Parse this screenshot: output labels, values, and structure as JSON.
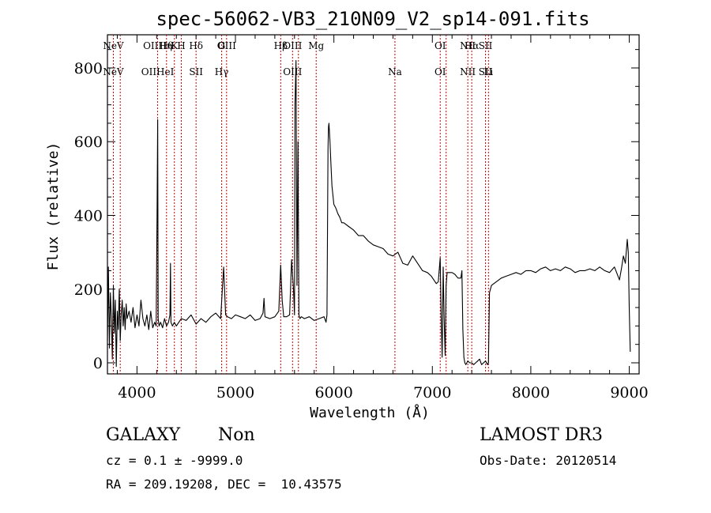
{
  "chart_data": {
    "type": "line",
    "title": "spec-56062-VB3_210N09_V2_sp14-091.fits",
    "xlabel": "Wavelength (Å)",
    "ylabel": "Flux (relative)",
    "xlim": [
      3700,
      9100
    ],
    "ylim": [
      -30,
      890
    ],
    "x_ticks": [
      4000,
      5000,
      6000,
      7000,
      8000,
      9000
    ],
    "y_ticks": [
      0,
      200,
      400,
      600,
      800
    ],
    "grid": false,
    "series": [
      {
        "color": "#000000",
        "x": [
          3700,
          3710,
          3720,
          3730,
          3740,
          3750,
          3760,
          3770,
          3780,
          3790,
          3800,
          3810,
          3820,
          3830,
          3840,
          3850,
          3860,
          3870,
          3880,
          3890,
          3900,
          3920,
          3940,
          3960,
          3980,
          4000,
          4020,
          4040,
          4060,
          4080,
          4100,
          4120,
          4140,
          4160,
          4180,
          4195,
          4205,
          4210,
          4215,
          4225,
          4240,
          4260,
          4280,
          4300,
          4320,
          4335,
          4340,
          4345,
          4360,
          4380,
          4400,
          4450,
          4500,
          4550,
          4600,
          4650,
          4700,
          4750,
          4800,
          4850,
          4880,
          4900,
          4920,
          4960,
          5000,
          5050,
          5100,
          5150,
          5200,
          5250,
          5280,
          5290,
          5300,
          5350,
          5400,
          5440,
          5460,
          5475,
          5490,
          5520,
          5550,
          5570,
          5590,
          5600,
          5605,
          5615,
          5625,
          5635,
          5645,
          5655,
          5670,
          5700,
          5750,
          5800,
          5850,
          5900,
          5920,
          5930,
          5940,
          5945,
          5950,
          5960,
          5970,
          5980,
          5990,
          6000,
          6020,
          6040,
          6060,
          6080,
          6100,
          6150,
          6200,
          6250,
          6300,
          6350,
          6400,
          6450,
          6500,
          6550,
          6600,
          6650,
          6700,
          6750,
          6800,
          6850,
          6900,
          6950,
          6990,
          7040,
          7060,
          7080,
          7090,
          7100,
          7110,
          7120,
          7130,
          7140,
          7150,
          7170,
          7200,
          7230,
          7260,
          7290,
          7300,
          7310,
          7320,
          7330,
          7340,
          7360,
          7380,
          7400,
          7420,
          7440,
          7460,
          7480,
          7500,
          7520,
          7540,
          7560,
          7570,
          7580,
          7590,
          7600,
          7650,
          7700,
          7750,
          7800,
          7850,
          7900,
          7950,
          8000,
          8050,
          8100,
          8150,
          8200,
          8250,
          8300,
          8350,
          8400,
          8450,
          8500,
          8550,
          8600,
          8650,
          8700,
          8750,
          8800,
          8850,
          8900,
          8920,
          8940,
          8960,
          8980,
          8990,
          9000,
          9010
        ],
        "y": [
          60,
          260,
          40,
          190,
          120,
          10,
          210,
          80,
          170,
          -10,
          140,
          90,
          200,
          60,
          130,
          170,
          100,
          150,
          90,
          160,
          120,
          140,
          110,
          150,
          95,
          130,
          100,
          170,
          120,
          100,
          130,
          90,
          140,
          95,
          110,
          100,
          430,
          660,
          120,
          100,
          110,
          95,
          120,
          100,
          110,
          130,
          270,
          110,
          100,
          110,
          100,
          120,
          115,
          130,
          105,
          120,
          110,
          125,
          135,
          120,
          260,
          130,
          125,
          120,
          130,
          125,
          120,
          130,
          115,
          120,
          135,
          175,
          125,
          120,
          125,
          140,
          265,
          170,
          125,
          125,
          130,
          280,
          200,
          130,
          700,
          820,
          210,
          600,
          130,
          120,
          125,
          120,
          125,
          115,
          120,
          125,
          110,
          130,
          580,
          640,
          650,
          600,
          540,
          480,
          455,
          430,
          420,
          405,
          395,
          380,
          380,
          370,
          360,
          345,
          345,
          330,
          320,
          315,
          310,
          295,
          290,
          300,
          270,
          265,
          290,
          270,
          250,
          245,
          235,
          215,
          220,
          285,
          120,
          15,
          260,
          120,
          20,
          210,
          245,
          245,
          245,
          240,
          230,
          230,
          250,
          90,
          15,
          0,
          -5,
          5,
          0,
          0,
          -5,
          0,
          5,
          10,
          -5,
          0,
          5,
          -5,
          0,
          190,
          200,
          210,
          220,
          230,
          235,
          240,
          245,
          240,
          250,
          250,
          245,
          255,
          260,
          250,
          255,
          250,
          260,
          255,
          245,
          250,
          250,
          255,
          250,
          260,
          250,
          245,
          260,
          225,
          255,
          290,
          270,
          335,
          300,
          150,
          30
        ]
      }
    ],
    "line_markers": [
      {
        "x": 3760,
        "top": "NeV",
        "bottom": "NeV"
      },
      {
        "x": 3830,
        "top": "",
        "bottom": ""
      },
      {
        "x": 4210,
        "top": "OIIHη",
        "bottom": "OIIHeI"
      },
      {
        "x": 4300,
        "top": "Hθ",
        "bottom": ""
      },
      {
        "x": 4380,
        "top": "K",
        "bottom": ""
      },
      {
        "x": 4450,
        "top": "H",
        "bottom": ""
      },
      {
        "x": 4600,
        "top": "Hδ",
        "bottom": "SII"
      },
      {
        "x": 4860,
        "top": "G",
        "bottom": "Hγ"
      },
      {
        "x": 4910,
        "top": "OIII",
        "bottom": ""
      },
      {
        "x": 5460,
        "top": "Hβ",
        "bottom": ""
      },
      {
        "x": 5580,
        "top": "OIII",
        "bottom": "OIII"
      },
      {
        "x": 5640,
        "top": "",
        "bottom": ""
      },
      {
        "x": 5820,
        "top": "Mg",
        "bottom": ""
      },
      {
        "x": 6620,
        "top": "",
        "bottom": "Na"
      },
      {
        "x": 7080,
        "top": "OI",
        "bottom": "OI"
      },
      {
        "x": 7140,
        "top": "",
        "bottom": ""
      },
      {
        "x": 7360,
        "top": "NII",
        "bottom": "NII"
      },
      {
        "x": 7400,
        "top": "Hα",
        "bottom": ""
      },
      {
        "x": 7540,
        "top": "SII",
        "bottom": "SII"
      },
      {
        "x": 7570,
        "top": "",
        "bottom": "Li"
      }
    ],
    "marker_color": "#cc0000"
  },
  "info": {
    "object_class": "GALAXY",
    "subclass": "Non",
    "survey": "LAMOST DR3",
    "redshift": "cz = 0.1 ± -9999.0",
    "obs_date": "Obs-Date: 20120514",
    "coords": "RA = 209.19208, DEC =  10.43575"
  }
}
